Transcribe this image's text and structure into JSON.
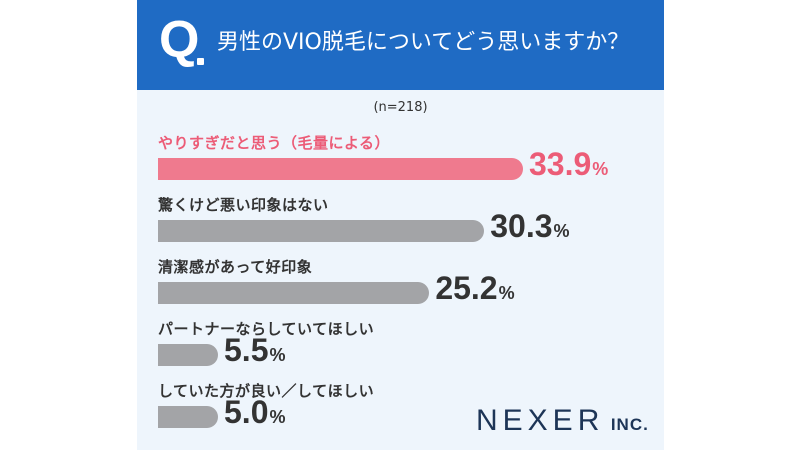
{
  "header": {
    "q_mark": "Q",
    "question": "男性のVIO脱毛についてどう思いますか？"
  },
  "sample": "(n=218)",
  "chart_data": {
    "type": "bar",
    "orientation": "horizontal",
    "categories": [
      "やりすぎだと思う（毛量による）",
      "驚くけど悪い印象はない",
      "清潔感があって好印象",
      "パートナーならしていてほしい",
      "していた方が良い／してほしい"
    ],
    "values": [
      33.9,
      30.3,
      25.2,
      5.5,
      5.0
    ],
    "value_labels": [
      "33.9",
      "30.3",
      "25.2",
      "5.5",
      "5.0"
    ],
    "unit": "%",
    "highlight_index": 0,
    "highlight_color": "#ef7a8e",
    "highlight_text_color": "#ec5c77",
    "bar_color": "#a3a4a7"
  },
  "logo": {
    "main": "NEXER",
    "suffix": "INC."
  }
}
